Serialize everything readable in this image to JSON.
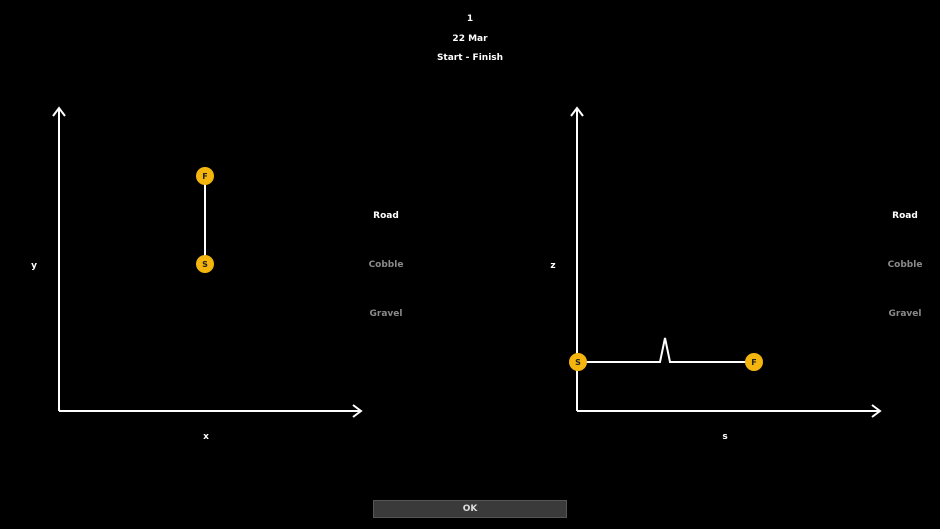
{
  "header": {
    "stage_number": "1",
    "date": "22 Mar",
    "route": "Start - Finish"
  },
  "map_plot": {
    "x_label": "x",
    "y_label": "y",
    "start_label": "S",
    "finish_label": "F"
  },
  "profile_plot": {
    "x_label": "s",
    "y_label": "z",
    "start_label": "S",
    "finish_label": "F"
  },
  "legend_left": {
    "items": [
      {
        "label": "Road",
        "active": true
      },
      {
        "label": "Cobble",
        "active": false
      },
      {
        "label": "Gravel",
        "active": false
      }
    ]
  },
  "legend_right": {
    "items": [
      {
        "label": "Road",
        "active": true
      },
      {
        "label": "Cobble",
        "active": false
      },
      {
        "label": "Gravel",
        "active": false
      }
    ]
  },
  "ok_button": {
    "label": "OK"
  },
  "colors": {
    "marker": "#f5b50f",
    "active": "#ffffff",
    "inactive": "#8a8a8a",
    "background": "#000000"
  }
}
